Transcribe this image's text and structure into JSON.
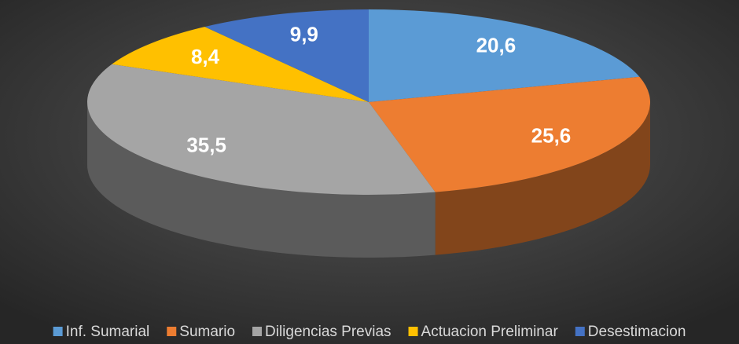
{
  "chart_data": {
    "type": "pie",
    "categories": [
      "Inf. Sumarial",
      "Sumario",
      "Diligencias Previas",
      "Actuacion Preliminar",
      "Desestimacion"
    ],
    "values": [
      20.6,
      25.6,
      35.5,
      8.4,
      9.9
    ],
    "value_labels": [
      "20,6",
      "25,6",
      "35,5",
      "8,4",
      "9,9"
    ],
    "colors": [
      "#5b9bd5",
      "#ed7d31",
      "#a5a5a5",
      "#ffc000",
      "#4472c4"
    ],
    "legend": "bottom"
  }
}
